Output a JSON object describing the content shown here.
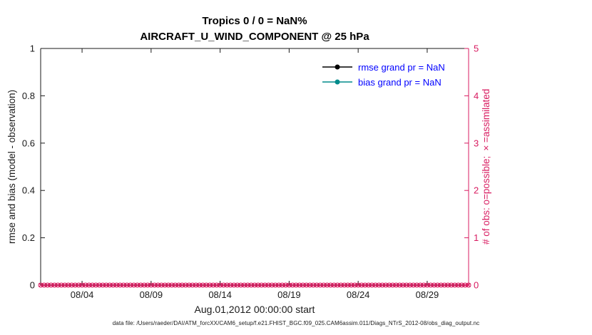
{
  "title": {
    "line1": "Tropics 0 / 0 = NaN%",
    "line2": "AIRCRAFT_U_WIND_COMPONENT @ 25 hPa"
  },
  "axes": {
    "left_label": "rmse and bias (model - observation)",
    "right_label": "# of obs: o=possible; ×=assimilated",
    "x_label": "Aug.01,2012 00:00:00 start",
    "left_ticks": [
      "0",
      "0.2",
      "0.4",
      "0.6",
      "0.8",
      "1"
    ],
    "right_ticks": [
      "0",
      "1",
      "2",
      "3",
      "4",
      "5"
    ],
    "x_ticks": [
      "08/04",
      "08/09",
      "08/14",
      "08/19",
      "08/24",
      "08/29"
    ]
  },
  "legend": [
    {
      "label": "rmse grand pr = NaN",
      "color": "#000000"
    },
    {
      "label": "bias grand pr = NaN",
      "color": "#008b8b"
    }
  ],
  "footer": "data file: /Users/raeder/DAI/ATM_forcXX/CAM6_setup/f.e21.FHIST_BGC.f09_025.CAM6assim.011/Diags_NTrS_2012-08/obs_diag_output.nc",
  "colors": {
    "obs_pink": "#d81b60",
    "legend_text": "#0000ff",
    "axis_dark": "#1a1a1a"
  },
  "chart_data": {
    "type": "line",
    "title": "Tropics 0 / 0 = NaN% — AIRCRAFT_U_WIND_COMPONENT @ 25 hPa",
    "xlabel": "Aug.01,2012 00:00:00 start",
    "ylabel_left": "rmse and bias (model - observation)",
    "ylabel_right": "# of obs: o=possible; ×=assimilated",
    "x_range_days": [
      1,
      32
    ],
    "x_tick_days": [
      4,
      9,
      14,
      19,
      24,
      29
    ],
    "x_tick_labels": [
      "08/04",
      "08/09",
      "08/14",
      "08/19",
      "08/24",
      "08/29"
    ],
    "ylim_left": [
      0,
      1
    ],
    "ylim_right": [
      0,
      5
    ],
    "grid": false,
    "legend_position": "upper-right-inside",
    "series": [
      {
        "name": "rmse grand pr",
        "axis": "left",
        "color": "#000000",
        "values": [],
        "note": "NaN - no data plotted"
      },
      {
        "name": "bias grand pr",
        "axis": "left",
        "color": "#008b8b",
        "values": [],
        "note": "NaN - no data plotted"
      },
      {
        "name": "possible obs count",
        "axis": "right",
        "marker": "o",
        "color": "#d81b60",
        "constant_value": 0,
        "n_points": 125
      },
      {
        "name": "assimilated obs count",
        "axis": "right",
        "marker": "x",
        "color": "#d81b60",
        "constant_value": 0,
        "n_points": 125
      }
    ]
  }
}
